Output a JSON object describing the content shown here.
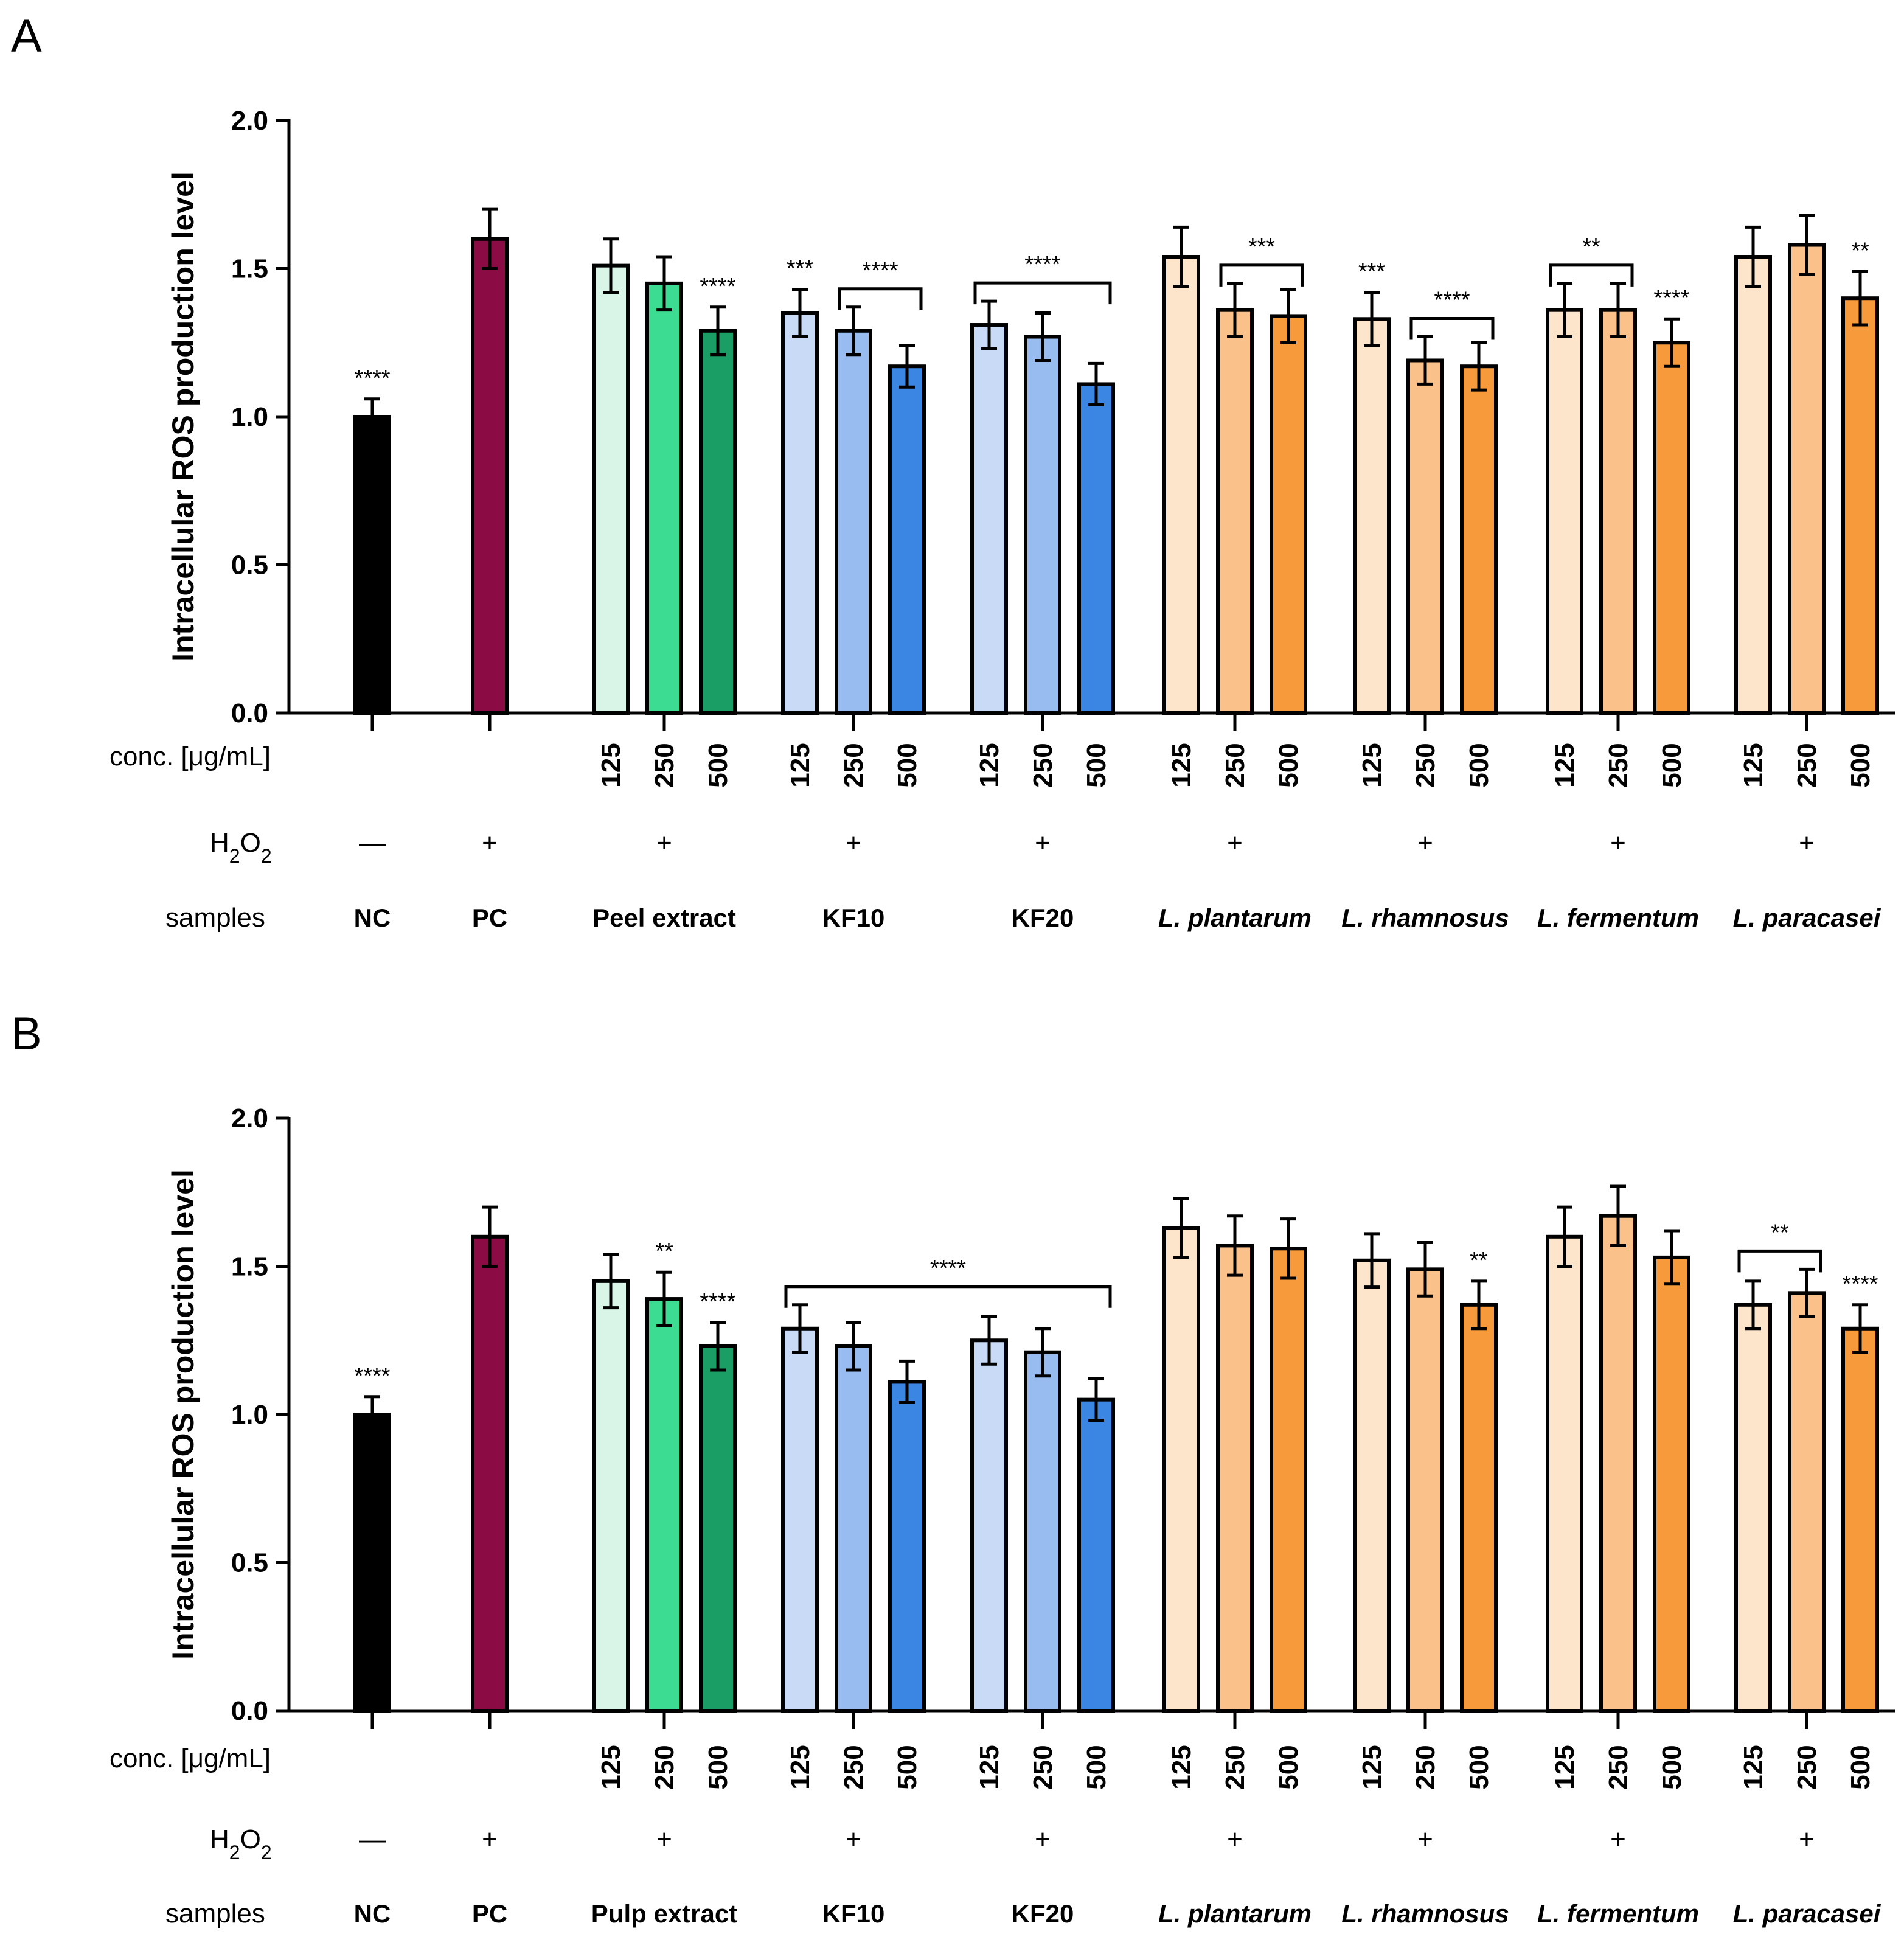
{
  "figure": {
    "ylabel": "Intracellular ROS production level",
    "row_labels": {
      "conc": "conc. [μg/mL]",
      "h2o2": "H2O2",
      "samples": "samples"
    }
  },
  "colors": {
    "NC": "#000000",
    "PC": "#8b0b45",
    "green": [
      "#d8f5e8",
      "#3ddc93",
      "#1a9e65"
    ],
    "blue": [
      "#c8daf5",
      "#99bcf0",
      "#3c86e3"
    ],
    "orange": [
      "#fde5cc",
      "#fbc18a",
      "#f79a3c"
    ]
  },
  "chart_data": [
    {
      "panel": "A",
      "type": "bar",
      "ylabel": "Intracellular ROS production level",
      "ylim": [
        0,
        2.0
      ],
      "yticks": [
        "0.0",
        "0.5",
        "1.0",
        "1.5",
        "2.0"
      ],
      "groups": [
        {
          "label": "NC",
          "italic": false,
          "h2o2": "—",
          "color": "NC",
          "conc": [
            ""
          ],
          "values": [
            1.0
          ],
          "errors": [
            0.06
          ]
        },
        {
          "label": "PC",
          "italic": false,
          "h2o2": "+",
          "color": "PC",
          "conc": [
            ""
          ],
          "values": [
            1.6
          ],
          "errors": [
            0.1
          ]
        },
        {
          "label": "Peel extract",
          "italic": false,
          "h2o2": "+",
          "color": "green",
          "conc": [
            "125",
            "250",
            "500"
          ],
          "values": [
            1.51,
            1.45,
            1.29
          ],
          "errors": [
            0.09,
            0.09,
            0.08
          ]
        },
        {
          "label": "KF10",
          "italic": false,
          "h2o2": "+",
          "color": "blue",
          "conc": [
            "125",
            "250",
            "500"
          ],
          "values": [
            1.35,
            1.29,
            1.17
          ],
          "errors": [
            0.08,
            0.08,
            0.07
          ]
        },
        {
          "label": "KF20",
          "italic": false,
          "h2o2": "+",
          "color": "blue",
          "conc": [
            "125",
            "250",
            "500"
          ],
          "values": [
            1.31,
            1.27,
            1.11
          ],
          "errors": [
            0.08,
            0.08,
            0.07
          ]
        },
        {
          "label": "L. plantarum",
          "italic": true,
          "h2o2": "+",
          "color": "orange",
          "conc": [
            "125",
            "250",
            "500"
          ],
          "values": [
            1.54,
            1.36,
            1.34
          ],
          "errors": [
            0.1,
            0.09,
            0.09
          ]
        },
        {
          "label": "L. rhamnosus",
          "italic": true,
          "h2o2": "+",
          "color": "orange",
          "conc": [
            "125",
            "250",
            "500"
          ],
          "values": [
            1.33,
            1.19,
            1.17
          ],
          "errors": [
            0.09,
            0.08,
            0.08
          ]
        },
        {
          "label": "L. fermentum",
          "italic": true,
          "h2o2": "+",
          "color": "orange",
          "conc": [
            "125",
            "250",
            "500"
          ],
          "values": [
            1.36,
            1.36,
            1.25
          ],
          "errors": [
            0.09,
            0.09,
            0.08
          ]
        },
        {
          "label": "L. paracasei",
          "italic": true,
          "h2o2": "+",
          "color": "orange",
          "conc": [
            "125",
            "250",
            "500"
          ],
          "values": [
            1.54,
            1.58,
            1.4
          ],
          "errors": [
            0.1,
            0.1,
            0.09
          ]
        }
      ],
      "annotations": [
        {
          "text": "****",
          "bar": [
            0,
            0
          ]
        },
        {
          "text": "****",
          "bar": [
            2,
            2
          ]
        },
        {
          "text": "***",
          "bar": [
            3,
            0
          ]
        },
        {
          "text": "****",
          "bracket": [
            [
              3,
              1
            ],
            [
              3,
              2
            ]
          ]
        },
        {
          "text": "****",
          "bracket": [
            [
              4,
              0
            ],
            [
              4,
              2
            ]
          ]
        },
        {
          "text": "***",
          "bracket": [
            [
              5,
              1
            ],
            [
              5,
              2
            ]
          ]
        },
        {
          "text": "***",
          "bar": [
            6,
            0
          ]
        },
        {
          "text": "****",
          "bracket": [
            [
              6,
              1
            ],
            [
              6,
              2
            ]
          ]
        },
        {
          "text": "**",
          "bracket": [
            [
              7,
              0
            ],
            [
              7,
              1
            ]
          ]
        },
        {
          "text": "****",
          "bar": [
            7,
            2
          ]
        },
        {
          "text": "**",
          "bar": [
            8,
            2
          ]
        }
      ]
    },
    {
      "panel": "B",
      "type": "bar",
      "ylabel": "Intracellular ROS production level",
      "ylim": [
        0,
        2.0
      ],
      "yticks": [
        "0.0",
        "0.5",
        "1.0",
        "1.5",
        "2.0"
      ],
      "groups": [
        {
          "label": "NC",
          "italic": false,
          "h2o2": "—",
          "color": "NC",
          "conc": [
            ""
          ],
          "values": [
            1.0
          ],
          "errors": [
            0.06
          ]
        },
        {
          "label": "PC",
          "italic": false,
          "h2o2": "+",
          "color": "PC",
          "conc": [
            ""
          ],
          "values": [
            1.6
          ],
          "errors": [
            0.1
          ]
        },
        {
          "label": "Pulp extract",
          "italic": false,
          "h2o2": "+",
          "color": "green",
          "conc": [
            "125",
            "250",
            "500"
          ],
          "values": [
            1.45,
            1.39,
            1.23
          ],
          "errors": [
            0.09,
            0.09,
            0.08
          ]
        },
        {
          "label": "KF10",
          "italic": false,
          "h2o2": "+",
          "color": "blue",
          "conc": [
            "125",
            "250",
            "500"
          ],
          "values": [
            1.29,
            1.23,
            1.11
          ],
          "errors": [
            0.08,
            0.08,
            0.07
          ]
        },
        {
          "label": "KF20",
          "italic": false,
          "h2o2": "+",
          "color": "blue",
          "conc": [
            "125",
            "250",
            "500"
          ],
          "values": [
            1.25,
            1.21,
            1.05
          ],
          "errors": [
            0.08,
            0.08,
            0.07
          ]
        },
        {
          "label": "L. plantarum",
          "italic": true,
          "h2o2": "+",
          "color": "orange",
          "conc": [
            "125",
            "250",
            "500"
          ],
          "values": [
            1.63,
            1.57,
            1.56
          ],
          "errors": [
            0.1,
            0.1,
            0.1
          ]
        },
        {
          "label": "L. rhamnosus",
          "italic": true,
          "h2o2": "+",
          "color": "orange",
          "conc": [
            "125",
            "250",
            "500"
          ],
          "values": [
            1.52,
            1.49,
            1.37
          ],
          "errors": [
            0.09,
            0.09,
            0.08
          ]
        },
        {
          "label": "L. fermentum",
          "italic": true,
          "h2o2": "+",
          "color": "orange",
          "conc": [
            "125",
            "250",
            "500"
          ],
          "values": [
            1.6,
            1.67,
            1.53
          ],
          "errors": [
            0.1,
            0.1,
            0.09
          ]
        },
        {
          "label": "L. paracasei",
          "italic": true,
          "h2o2": "+",
          "color": "orange",
          "conc": [
            "125",
            "250",
            "500"
          ],
          "values": [
            1.37,
            1.41,
            1.29
          ],
          "errors": [
            0.08,
            0.08,
            0.08
          ]
        }
      ],
      "annotations": [
        {
          "text": "****",
          "bar": [
            0,
            0
          ]
        },
        {
          "text": "**",
          "bar": [
            2,
            1
          ]
        },
        {
          "text": "****",
          "bar": [
            2,
            2
          ]
        },
        {
          "text": "****",
          "bracket": [
            [
              3,
              0
            ],
            [
              4,
              2
            ]
          ]
        },
        {
          "text": "**",
          "bar": [
            6,
            2
          ]
        },
        {
          "text": "**",
          "bracket": [
            [
              8,
              0
            ],
            [
              8,
              1
            ]
          ]
        },
        {
          "text": "****",
          "bar": [
            8,
            2
          ]
        }
      ]
    }
  ]
}
